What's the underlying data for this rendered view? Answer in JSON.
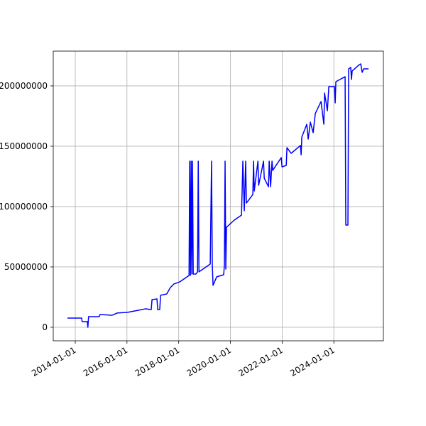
{
  "chart_data": {
    "type": "line",
    "x": [
      "2013-09-13",
      "2014-04-01",
      "2014-04-08",
      "2014-06-20",
      "2014-06-28",
      "2014-07-08",
      "2014-12-05",
      "2014-12-16",
      "2015-06-06",
      "2015-08-15",
      "2016-01-12",
      "2016-06-10",
      "2016-09-20",
      "2016-12-09",
      "2016-12-20",
      "2017-02-28",
      "2017-03-10",
      "2017-04-08",
      "2017-04-20",
      "2017-07-16",
      "2017-09-05",
      "2017-10-26",
      "2018-01-15",
      "2018-05-27",
      "2018-06-05",
      "2018-06-15",
      "2018-06-25",
      "2018-07-05",
      "2018-07-15",
      "2018-07-25",
      "2018-09-02",
      "2018-09-24",
      "2018-10-04",
      "2018-10-14",
      "2019-03-22",
      "2019-04-10",
      "2019-04-20",
      "2019-05-01",
      "2019-06-21",
      "2019-09-28",
      "2019-10-08",
      "2019-10-18",
      "2019-10-28",
      "2019-11-07",
      "2020-02-25",
      "2020-06-06",
      "2020-06-25",
      "2020-07-15",
      "2020-08-04",
      "2020-08-14",
      "2020-11-13",
      "2020-11-23",
      "2020-12-03",
      "2021-01-24",
      "2021-02-03",
      "2021-04-13",
      "2021-04-23",
      "2021-06-22",
      "2021-07-02",
      "2021-07-22",
      "2021-08-11",
      "2021-08-21",
      "2021-12-20",
      "2021-12-30",
      "2022-02-28",
      "2022-03-10",
      "2022-05-08",
      "2022-09-16",
      "2022-09-26",
      "2022-10-06",
      "2022-12-15",
      "2023-01-04",
      "2023-02-03",
      "2023-03-15",
      "2023-04-14",
      "2023-07-04",
      "2023-08-13",
      "2023-08-23",
      "2023-10-02",
      "2023-10-22",
      "2024-01-10",
      "2024-01-20",
      "2024-01-30",
      "2024-06-08",
      "2024-06-18",
      "2024-07-18",
      "2024-07-28",
      "2024-08-27",
      "2024-09-06",
      "2024-09-16",
      "2024-12-26",
      "2025-01-15",
      "2025-02-04",
      "2025-02-24",
      "2025-05-05"
    ],
    "series": [
      {
        "color": "#0000ff",
        "values": [
          7600000,
          7600000,
          4700000,
          4700000,
          0,
          8800000,
          8800000,
          10600000,
          10000000,
          11800000,
          12400000,
          14100000,
          15300000,
          14700000,
          22900000,
          23500000,
          14700000,
          14700000,
          26500000,
          27600000,
          32900000,
          35900000,
          37600000,
          42900000,
          137600000,
          42900000,
          137600000,
          44100000,
          137600000,
          44100000,
          44100000,
          45900000,
          137600000,
          45900000,
          52400000,
          137600000,
          52400000,
          34700000,
          41800000,
          43500000,
          51200000,
          137600000,
          48200000,
          82900000,
          88800000,
          92900000,
          137600000,
          96500000,
          137600000,
          102900000,
          110000000,
          137600000,
          112900000,
          137600000,
          117600000,
          137600000,
          123500000,
          116500000,
          137600000,
          116500000,
          137600000,
          130000000,
          140600000,
          132900000,
          134100000,
          148800000,
          144100000,
          150600000,
          142900000,
          157600000,
          168200000,
          155900000,
          170000000,
          161200000,
          177100000,
          187100000,
          168200000,
          194100000,
          179400000,
          199400000,
          199400000,
          185900000,
          203500000,
          207600000,
          84700000,
          84700000,
          214100000,
          215300000,
          205300000,
          212400000,
          217600000,
          218200000,
          211200000,
          214100000,
          214100000
        ]
      }
    ],
    "xlim": [
      "2013-02-24",
      "2025-12-01"
    ],
    "xticks": [
      "2014-01-01",
      "2016-01-01",
      "2018-01-01",
      "2020-01-01",
      "2022-01-01",
      "2024-01-01"
    ],
    "ylim": [
      -11200000,
      228800000
    ],
    "yticks": [
      0,
      50000000,
      100000000,
      150000000,
      200000000
    ],
    "grid": true
  }
}
